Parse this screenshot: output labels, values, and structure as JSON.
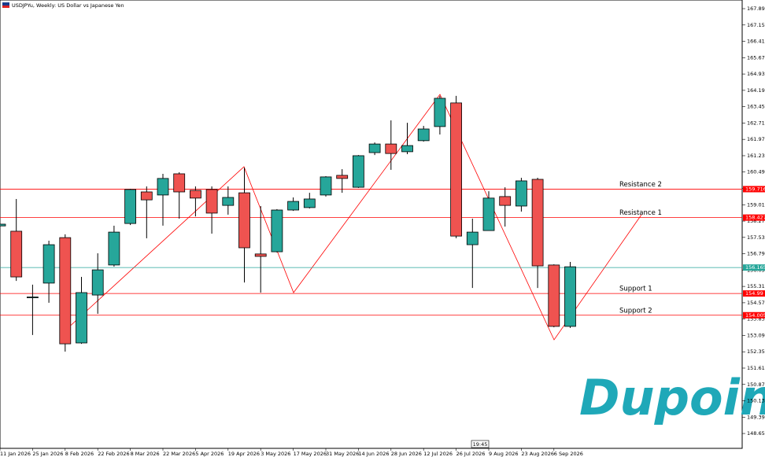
{
  "chart_data": {
    "type": "candlestick",
    "title": "USDJPYu, Weekly: US Dollar vs Japanese Yen",
    "categories": [
      "11 Jan 2026",
      null,
      "25 Jan 2026",
      null,
      "8 Feb 2026",
      null,
      "22 Feb 2026",
      null,
      "8 Mar 2026",
      null,
      "22 Mar 2026",
      null,
      "5 Apr 2026",
      null,
      "19 Apr 2026",
      null,
      "3 May 2026",
      null,
      "17 May 2026",
      null,
      "31 May 2026",
      null,
      "14 Jun 2026",
      null,
      "28 Jun 2026",
      null,
      "12 Jul 2026",
      null,
      "26 Jul 2026",
      null,
      "9 Aug 2026",
      null,
      "23 Aug 2026",
      null,
      "6 Sep 2026",
      null
    ],
    "open": [
      158.05,
      157.81,
      154.82,
      155.46,
      157.52,
      152.75,
      154.92,
      156.28,
      158.16,
      159.59,
      159.45,
      160.41,
      159.66,
      159.7,
      158.98,
      159.55,
      156.78,
      156.88,
      158.77,
      158.88,
      159.45,
      160.34,
      159.8,
      161.37,
      161.76,
      161.41,
      161.91,
      162.55,
      163.62,
      157.2,
      157.84,
      159.38,
      158.95,
      160.16,
      156.28,
      153.5
    ],
    "high": [
      158.2,
      159.27,
      155.39,
      157.38,
      157.67,
      155.74,
      156.81,
      158.06,
      159.73,
      159.84,
      160.41,
      160.48,
      159.84,
      159.84,
      159.84,
      160.69,
      158.95,
      158.81,
      159.34,
      159.55,
      160.3,
      160.62,
      161.26,
      161.83,
      162.83,
      162.72,
      162.58,
      163.94,
      163.94,
      158.38,
      159.62,
      159.8,
      160.23,
      160.23,
      156.31,
      156.42
    ],
    "low": [
      158.0,
      155.56,
      153.11,
      154.57,
      152.36,
      152.71,
      154.07,
      156.21,
      158.09,
      157.49,
      158.06,
      158.38,
      158.48,
      157.7,
      158.56,
      155.49,
      155.03,
      156.85,
      158.73,
      158.84,
      159.38,
      159.55,
      159.77,
      161.26,
      160.59,
      161.3,
      161.87,
      162.19,
      157.49,
      155.24,
      157.84,
      158.02,
      158.7,
      155.24,
      153.46,
      153.43
    ],
    "close": [
      158.13,
      155.74,
      154.83,
      157.2,
      152.71,
      155.03,
      156.06,
      157.77,
      159.7,
      159.23,
      160.2,
      159.59,
      159.31,
      158.63,
      159.34,
      157.06,
      156.67,
      158.77,
      159.16,
      159.27,
      160.27,
      160.2,
      161.23,
      161.76,
      161.33,
      161.69,
      162.44,
      163.83,
      157.59,
      157.77,
      159.31,
      158.98,
      160.09,
      156.24,
      153.5,
      156.2
    ],
    "up_color": "#26a69a",
    "down_color": "#ef5350",
    "ylim": [
      147.976,
      168.282
    ],
    "yticks": [
      {
        "value": 167.89,
        "label": "167.890"
      },
      {
        "value": 167.15,
        "label": "167.150"
      },
      {
        "value": 166.41,
        "label": "166.410"
      },
      {
        "value": 165.67,
        "label": "165.670"
      },
      {
        "value": 164.93,
        "label": "164.930"
      },
      {
        "value": 164.19,
        "label": "164.190"
      },
      {
        "value": 163.45,
        "label": "163.450"
      },
      {
        "value": 162.71,
        "label": "162.710"
      },
      {
        "value": 161.97,
        "label": "161.970"
      },
      {
        "value": 161.23,
        "label": "161.230"
      },
      {
        "value": 160.49,
        "label": "160.490"
      },
      {
        "value": 159.75,
        "label": "159.750"
      },
      {
        "value": 159.01,
        "label": "159.010"
      },
      {
        "value": 158.27,
        "label": "158.270"
      },
      {
        "value": 157.53,
        "label": "157.530"
      },
      {
        "value": 156.79,
        "label": "156.790"
      },
      {
        "value": 156.05,
        "label": "156.050"
      },
      {
        "value": 155.31,
        "label": "155.310"
      },
      {
        "value": 154.57,
        "label": "154.570"
      },
      {
        "value": 153.83,
        "label": "153.830"
      },
      {
        "value": 153.09,
        "label": "153.090"
      },
      {
        "value": 152.35,
        "label": "152.350"
      },
      {
        "value": 151.61,
        "label": "151.610"
      },
      {
        "value": 150.87,
        "label": "150.870"
      },
      {
        "value": 150.13,
        "label": "150.130"
      },
      {
        "value": 149.39,
        "label": "149.390"
      },
      {
        "value": 148.65,
        "label": "148.650"
      }
    ],
    "levels": [
      {
        "name": "Resistance 2",
        "value": 159.716,
        "color": "#ff0000"
      },
      {
        "name": "Resistance 1",
        "value": 158.427,
        "color": "#ff0000"
      },
      {
        "name": "Support 1",
        "value": 154.99,
        "color": "#ff0000"
      },
      {
        "name": "Support 2",
        "value": 154.005,
        "color": "#ff0000"
      }
    ],
    "price_line": {
      "value": 156.165,
      "color": "#26a69a"
    },
    "time_label": "19:45",
    "logo": "Dupoin"
  }
}
